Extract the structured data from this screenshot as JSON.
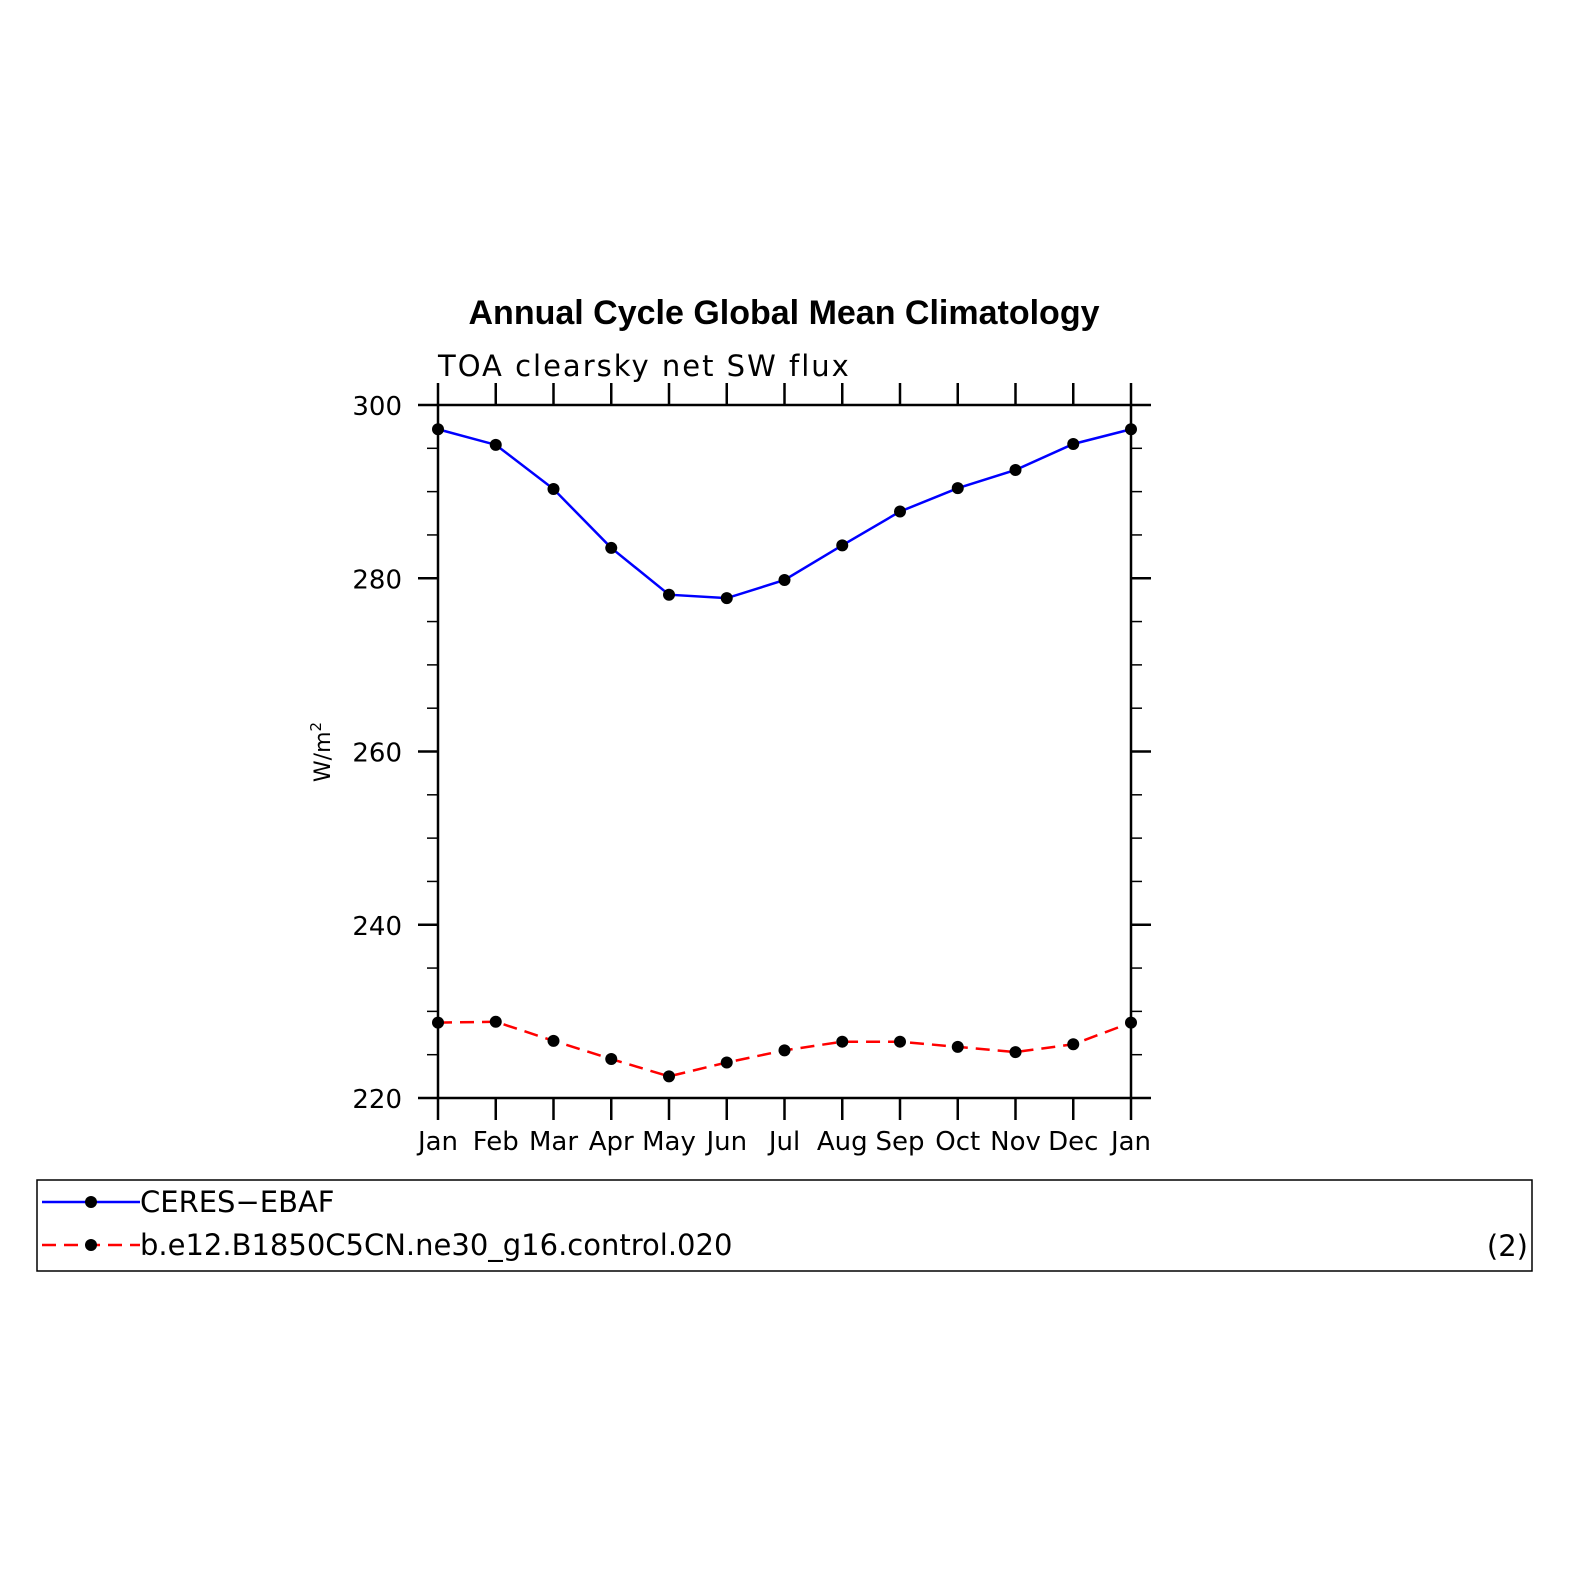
{
  "chart_data": {
    "type": "line",
    "title": "Annual Cycle Global Mean Climatology",
    "subtitle": "TOA clearsky net SW flux",
    "xlabel": "",
    "ylabel": "W/m",
    "ylabel_superscript": "2",
    "categories": [
      "Jan",
      "Feb",
      "Mar",
      "Apr",
      "May",
      "Jun",
      "Jul",
      "Aug",
      "Sep",
      "Oct",
      "Nov",
      "Dec",
      "Jan"
    ],
    "ylim": [
      220,
      300
    ],
    "yticks": [
      220,
      240,
      260,
      280,
      300
    ],
    "yminor_step": 5,
    "grid": false,
    "legend_position": "bottom",
    "legend_note": "(2)",
    "series": [
      {
        "name": "CERES−EBAF",
        "color": "#0000ff",
        "dash": "solid",
        "values": [
          297.2,
          295.4,
          290.3,
          283.5,
          278.1,
          277.7,
          279.8,
          283.8,
          287.7,
          290.4,
          292.5,
          295.5,
          297.2
        ]
      },
      {
        "name": "b.e12.B1850C5CN.ne30_g16.control.020",
        "color": "#ff0000",
        "dash": "dashed",
        "values": [
          228.7,
          228.8,
          226.6,
          224.5,
          222.5,
          224.1,
          225.5,
          226.5,
          226.5,
          225.9,
          225.3,
          226.2,
          228.7
        ]
      }
    ]
  }
}
